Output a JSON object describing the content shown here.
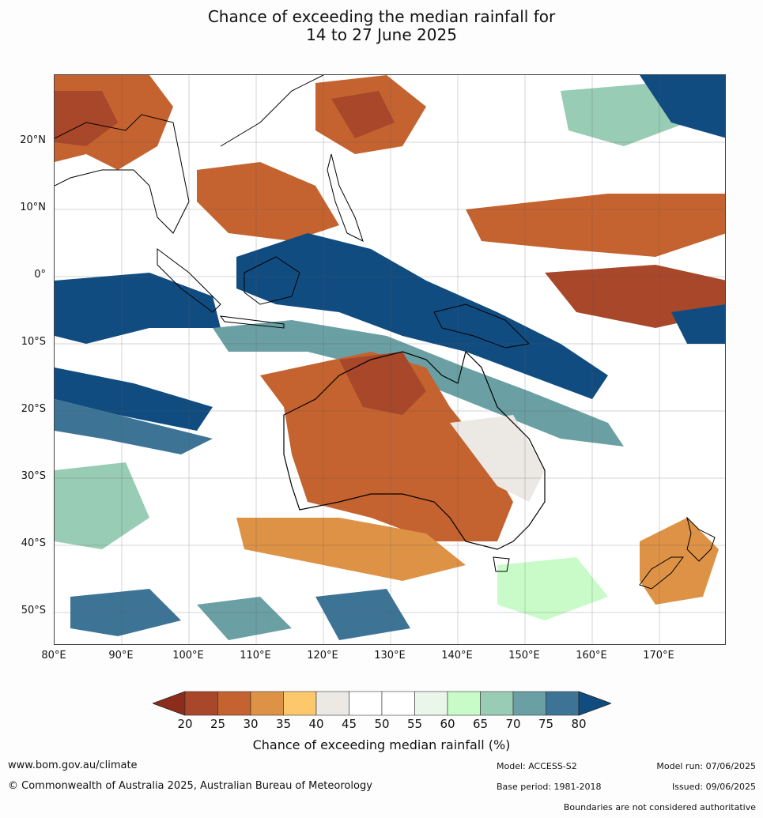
{
  "title": {
    "line1": "Chance of exceeding the median rainfall for",
    "line2": "14 to 27 June 2025"
  },
  "map": {
    "lat_labels": [
      "20°N",
      "10°N",
      "0°",
      "10°S",
      "20°S",
      "30°S",
      "40°S",
      "50°S"
    ],
    "lon_labels": [
      "80°E",
      "90°E",
      "100°E",
      "110°E",
      "120°E",
      "130°E",
      "140°E",
      "150°E",
      "160°E",
      "170°E"
    ],
    "extent": {
      "lon": [
        80,
        180
      ],
      "lat": [
        -55,
        30
      ]
    }
  },
  "legend": {
    "ticks": [
      "20",
      "25",
      "30",
      "35",
      "40",
      "45",
      "50",
      "55",
      "60",
      "65",
      "70",
      "75",
      "80"
    ],
    "colors": {
      "below20": "#8c2d1b",
      "20-25": "#a8472a",
      "25-30": "#c4632f",
      "30-35": "#de9246",
      "35-40": "#fdc86c",
      "40-45": "#ece9e4",
      "45-50": "#ffffff",
      "50-55": "#ffffff",
      "55-60": "#e9f6e9",
      "60-65": "#c9fbc9",
      "65-70": "#98ccb4",
      "70-75": "#6aa0a4",
      "75-80": "#3d7496",
      "above80": "#114c81"
    },
    "label": "Chance of exceeding median rainfall (%)"
  },
  "footer": {
    "website": "www.bom.gov.au/climate",
    "copyright": "© Commonwealth of Australia 2025, Australian Bureau of Meteorology",
    "model": "Model: ACCESS-S2",
    "model_run": "Model run: 07/06/2025",
    "base_period": "Base period: 1981-2018",
    "issued": "Issued: 09/06/2025",
    "boundaries_note": "Boundaries are not considered authoritative"
  }
}
